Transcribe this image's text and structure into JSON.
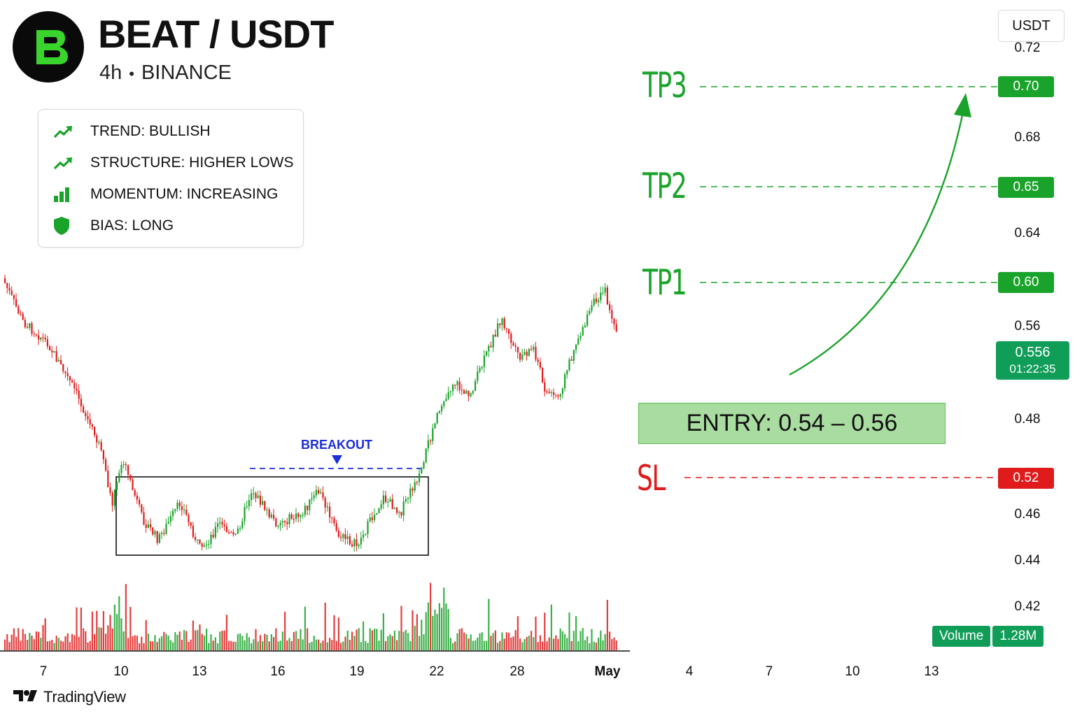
{
  "header": {
    "pair": "BEAT / USDT",
    "timeframe": "4h",
    "separator": "•",
    "exchange": "BINANCE",
    "logo_icon": "beat-logo-icon"
  },
  "currency_selector": "USDT",
  "info_box": {
    "items": [
      {
        "icon": "trend-up-icon",
        "label": "TREND: BULLISH"
      },
      {
        "icon": "trend-up-icon",
        "label": "STRUCTURE: HIGHER LOWS"
      },
      {
        "icon": "bar-chart-icon",
        "label": "MOMENTUM: INCREASING"
      },
      {
        "icon": "shield-icon",
        "label": "BIAS: LONG"
      }
    ]
  },
  "chart_data": {
    "type": "candlestick",
    "title": "BEAT / USDT",
    "interval": "4h",
    "exchange": "BINANCE",
    "x_tick_labels": [
      "7",
      "10",
      "13",
      "16",
      "19",
      "22",
      "28",
      "May",
      "4",
      "7",
      "10",
      "13"
    ],
    "y_tick_labels": [
      "0.72",
      "0.68",
      "0.64",
      "0.56",
      "0.48",
      "0.46",
      "0.44",
      "0.42"
    ],
    "price_path": {
      "dates": [
        "7",
        "10",
        "13",
        "16",
        "19",
        "22",
        "28",
        "May"
      ],
      "description_points": [
        {
          "x": "7",
          "price": 0.555
        },
        {
          "x": "10",
          "price": 0.455
        },
        {
          "x": "13",
          "price": 0.442
        },
        {
          "x": "16",
          "price": 0.462
        },
        {
          "x": "19",
          "price": 0.448
        },
        {
          "x": "22",
          "price": 0.49
        },
        {
          "x": "28",
          "price": 0.53
        },
        {
          "x": "May",
          "price": 0.556
        }
      ]
    },
    "levels": [
      {
        "name": "TP3",
        "price": 0.7,
        "label": "0.70",
        "color": "#1aa32a"
      },
      {
        "name": "TP2",
        "price": 0.65,
        "label": "0.65",
        "color": "#1aa32a"
      },
      {
        "name": "TP1",
        "price": 0.6,
        "label": "0.60",
        "color": "#1aa32a"
      },
      {
        "name": "SL",
        "price": 0.52,
        "label": "0.52",
        "color": "#e01b1b"
      }
    ],
    "entry_zone": {
      "label": "ENTRY: 0.54 – 0.56",
      "low": 0.54,
      "high": 0.56
    },
    "current_price": {
      "value": "0.556",
      "countdown": "01:22:35"
    },
    "annotations": [
      {
        "text": "BREAKOUT",
        "type": "range-breakout",
        "color": "#1d2fd6"
      }
    ],
    "volume": {
      "label": "Volume",
      "value": "1.28M"
    },
    "colors": {
      "up": "#1aa32a",
      "down": "#e01b1b",
      "accent": "#0f9d58"
    }
  },
  "branding": {
    "name": "TradingView",
    "icon": "tradingview-logo-icon"
  }
}
